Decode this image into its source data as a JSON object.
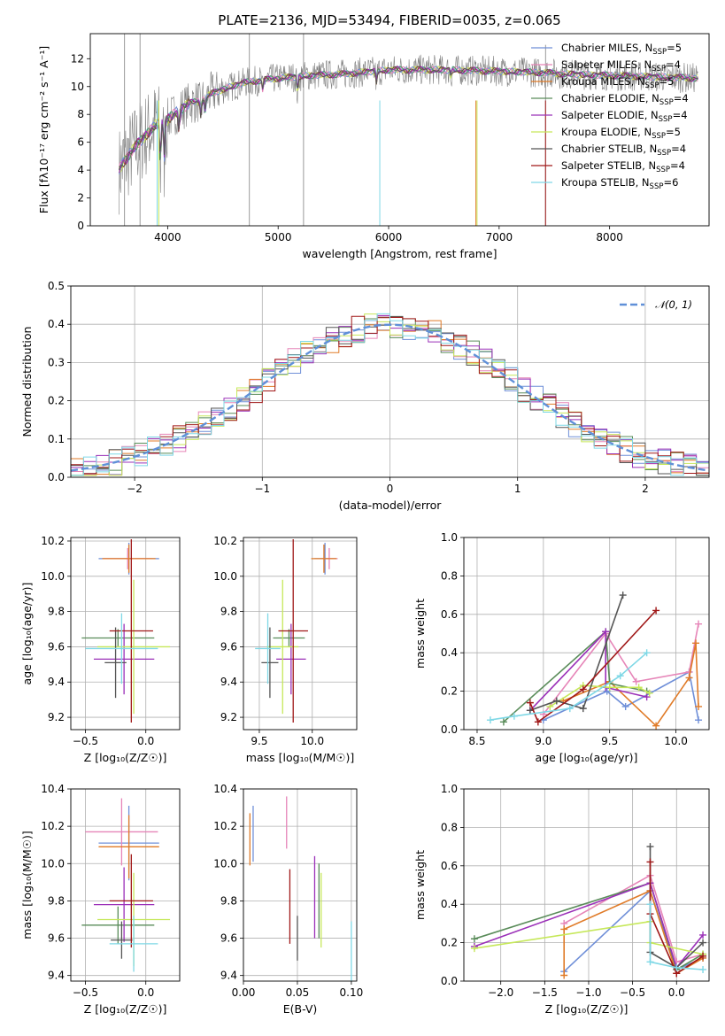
{
  "figure": {
    "title": "PLATE=2136, MJD=53494, FIBERID=0035, z=0.065"
  },
  "colors": {
    "chabrier_miles": "#6f8fd8",
    "salpeter_miles": "#e685b8",
    "kroupa_miles": "#e07b28",
    "chabrier_elodie": "#5a8c5a",
    "salpeter_elodie": "#9b30b8",
    "kroupa_elodie": "#c6e85a",
    "chabrier_stelib": "#555555",
    "salpeter_stelib": "#a01818",
    "kroupa_stelib": "#7fd8e6",
    "data": "#808080",
    "normal": "#6090d8"
  },
  "legend_spectrum": [
    {
      "text": "Chabrier MILES, N",
      "sub": "SSP",
      "tail": "=5",
      "color": "#6f8fd8"
    },
    {
      "text": "Salpeter MILES, N",
      "sub": "SSP",
      "tail": "=4",
      "color": "#e685b8"
    },
    {
      "text": "Kroupa MILES, N",
      "sub": "SSP",
      "tail": "=5",
      "color": "#e07b28"
    },
    {
      "text": "Chabrier ELODIE, N",
      "sub": "SSP",
      "tail": "=4",
      "color": "#5a8c5a"
    },
    {
      "text": "Salpeter ELODIE, N",
      "sub": "SSP",
      "tail": "=4",
      "color": "#9b30b8"
    },
    {
      "text": "Kroupa ELODIE, N",
      "sub": "SSP",
      "tail": "=5",
      "color": "#c6e85a"
    },
    {
      "text": "Chabrier STELIB, N",
      "sub": "SSP",
      "tail": "=4",
      "color": "#555555"
    },
    {
      "text": "Salpeter STELIB, N",
      "sub": "SSP",
      "tail": "=4",
      "color": "#a01818"
    },
    {
      "text": "Kroupa STELIB, N",
      "sub": "SSP",
      "tail": "=6",
      "color": "#7fd8e6"
    }
  ],
  "chart_data": [
    {
      "type": "line",
      "panel": "spectrum",
      "xlabel": "wavelength [Angstrom, rest frame]",
      "ylabel": "Flux [fλ10⁻¹⁷ erg cm⁻² s⁻¹ A⁻¹]",
      "xlim": [
        3300,
        8900
      ],
      "ylim": [
        0,
        13.8
      ],
      "xticks": [
        4000,
        5000,
        6000,
        7000,
        8000
      ],
      "yticks": [
        0,
        2,
        4,
        6,
        8,
        10,
        12
      ],
      "continuum": {
        "x": [
          3560,
          3600,
          3700,
          3800,
          3900,
          4000,
          4100,
          4200,
          4300,
          4400,
          4500,
          4700,
          5000,
          5300,
          5600,
          6000,
          6500,
          7000,
          7400,
          7600,
          8000,
          8400,
          8800
        ],
        "y": [
          4.0,
          4.6,
          5.6,
          6.5,
          7.3,
          7.6,
          8.3,
          8.8,
          9.0,
          9.5,
          9.8,
          10.3,
          10.6,
          10.8,
          10.9,
          11.2,
          11.2,
          11.1,
          11.0,
          10.9,
          10.8,
          10.7,
          10.6
        ]
      }
    },
    {
      "type": "line",
      "panel": "residual_histogram",
      "xlabel": "(data-model)/error",
      "ylabel": "Normed distribution",
      "xlim": [
        -2.5,
        2.5
      ],
      "ylim": [
        0,
        0.5
      ],
      "xticks": [
        -2,
        -1,
        0,
        1,
        2
      ],
      "yticks": [
        0.0,
        0.1,
        0.2,
        0.3,
        0.4,
        0.5
      ],
      "legend": "𝒩(0, 1)",
      "bin_width": 0.1
    },
    {
      "type": "scatter",
      "panel": "age_vs_Z",
      "xlabel": "Z [log₁₀(Z/Z☉)]",
      "ylabel": "age  [log₁₀(age/yr)]",
      "xlim": [
        -0.62,
        0.28
      ],
      "ylim": [
        9.13,
        10.22
      ],
      "xticks": [
        -0.5,
        0.0
      ],
      "yticks": [
        9.2,
        9.4,
        9.6,
        9.8,
        10.0,
        10.2
      ],
      "series": [
        {
          "name": "Chabrier MILES",
          "x": -0.14,
          "xerr": 0.25,
          "y": 10.1,
          "yerr": 0.09
        },
        {
          "name": "Salpeter MILES",
          "x": -0.15,
          "xerr": 0.2,
          "y": 10.1,
          "yerr": 0.06
        },
        {
          "name": "Kroupa MILES",
          "x": -0.14,
          "xerr": 0.22,
          "y": 10.1,
          "yerr": 0.08
        },
        {
          "name": "Chabrier ELODIE",
          "x": -0.23,
          "xerr": 0.3,
          "y": 9.65,
          "yerr": 0.05
        },
        {
          "name": "Salpeter ELODIE",
          "x": -0.18,
          "xerr": 0.25,
          "y": 9.53,
          "yerr": 0.2
        },
        {
          "name": "Kroupa ELODIE",
          "x": -0.1,
          "xerr": 0.3,
          "y": 9.6,
          "yerr": 0.38
        },
        {
          "name": "Chabrier STELIB",
          "x": -0.25,
          "xerr": 0.09,
          "y": 9.51,
          "yerr": 0.2
        },
        {
          "name": "Salpeter STELIB",
          "x": -0.12,
          "xerr": 0.18,
          "y": 9.69,
          "yerr": 0.52
        },
        {
          "name": "Kroupa STELIB",
          "x": -0.2,
          "xerr": 0.3,
          "y": 9.59,
          "yerr": 0.2
        }
      ]
    },
    {
      "type": "scatter",
      "panel": "age_vs_mass",
      "xlabel": "mass [log₁₀(M/M☉)]",
      "ylabel": "",
      "xlim": [
        9.35,
        10.42
      ],
      "ylim": [
        9.13,
        10.22
      ],
      "xticks": [
        9.5,
        10.0
      ],
      "yticks": [
        9.2,
        9.4,
        9.6,
        9.8,
        10.0,
        10.2
      ],
      "series": [
        {
          "name": "Chabrier MILES",
          "x": 10.12,
          "xerr": 0.1,
          "y": 10.1,
          "yerr": 0.09
        },
        {
          "name": "Salpeter MILES",
          "x": 10.16,
          "xerr": 0.08,
          "y": 10.1,
          "yerr": 0.06
        },
        {
          "name": "Kroupa MILES",
          "x": 10.11,
          "xerr": 0.12,
          "y": 10.1,
          "yerr": 0.08
        },
        {
          "name": "Chabrier ELODIE",
          "x": 9.78,
          "xerr": 0.15,
          "y": 9.65,
          "yerr": 0.05
        },
        {
          "name": "Salpeter ELODIE",
          "x": 9.8,
          "xerr": 0.14,
          "y": 9.53,
          "yerr": 0.2
        },
        {
          "name": "Kroupa ELODIE",
          "x": 9.72,
          "xerr": 0.15,
          "y": 9.6,
          "yerr": 0.38
        },
        {
          "name": "Chabrier STELIB",
          "x": 9.6,
          "xerr": 0.08,
          "y": 9.51,
          "yerr": 0.2
        },
        {
          "name": "Salpeter STELIB",
          "x": 9.82,
          "xerr": 0.14,
          "y": 9.69,
          "yerr": 0.52
        },
        {
          "name": "Kroupa STELIB",
          "x": 9.58,
          "xerr": 0.12,
          "y": 9.59,
          "yerr": 0.2
        }
      ]
    },
    {
      "type": "line",
      "panel": "weight_vs_age",
      "xlabel": "age  [log₁₀(age/yr)]",
      "ylabel": "mass weight",
      "xlim": [
        8.4,
        10.25
      ],
      "ylim": [
        0,
        1.0
      ],
      "xticks": [
        8.5,
        9.0,
        9.5,
        10.0
      ],
      "yticks": [
        0.0,
        0.2,
        0.4,
        0.6,
        0.8,
        1.0
      ],
      "series": [
        {
          "name": "Chabrier MILES",
          "x": [
            9.0,
            9.48,
            9.62,
            10.1,
            10.17
          ],
          "y": [
            0.05,
            0.2,
            0.12,
            0.3,
            0.05
          ]
        },
        {
          "name": "Salpeter MILES",
          "x": [
            9.0,
            9.47,
            9.7,
            10.1,
            10.17
          ],
          "y": [
            0.08,
            0.5,
            0.25,
            0.3,
            0.55
          ]
        },
        {
          "name": "Kroupa MILES",
          "x": [
            9.15,
            9.5,
            9.85,
            10.1,
            10.15,
            10.17
          ],
          "y": [
            0.15,
            0.25,
            0.02,
            0.27,
            0.45,
            0.12
          ]
        },
        {
          "name": "Chabrier ELODIE",
          "x": [
            8.7,
            9.47,
            9.5,
            9.78
          ],
          "y": [
            0.04,
            0.51,
            0.24,
            0.2
          ]
        },
        {
          "name": "Salpeter ELODIE",
          "x": [
            8.9,
            9.47,
            9.47,
            9.78
          ],
          "y": [
            0.1,
            0.51,
            0.22,
            0.17
          ]
        },
        {
          "name": "Kroupa ELODIE",
          "x": [
            9.05,
            9.3,
            9.5,
            9.72,
            9.8
          ],
          "y": [
            0.12,
            0.23,
            0.22,
            0.22,
            0.19
          ]
        },
        {
          "name": "Chabrier STELIB",
          "x": [
            8.9,
            9.1,
            9.3,
            9.6
          ],
          "y": [
            0.1,
            0.15,
            0.11,
            0.7
          ]
        },
        {
          "name": "Salpeter STELIB",
          "x": [
            8.9,
            8.96,
            9.3,
            9.85
          ],
          "y": [
            0.14,
            0.04,
            0.21,
            0.62
          ]
        },
        {
          "name": "Kroupa STELIB",
          "x": [
            8.6,
            8.78,
            9.2,
            9.58,
            9.78
          ],
          "y": [
            0.05,
            0.07,
            0.11,
            0.28,
            0.4
          ]
        }
      ]
    },
    {
      "type": "scatter",
      "panel": "mass_vs_Z",
      "xlabel": "Z [log₁₀(Z/Z☉)]",
      "ylabel": "mass [log₁₀(M/M☉)]",
      "xlim": [
        -0.62,
        0.28
      ],
      "ylim": [
        9.37,
        10.4
      ],
      "xticks": [
        -0.5,
        0.0
      ],
      "yticks": [
        9.4,
        9.6,
        9.8,
        10.0,
        10.2,
        10.4
      ],
      "series": [
        {
          "name": "Chabrier MILES",
          "x": -0.14,
          "xerr": 0.25,
          "y": 10.11,
          "yerr": 0.2
        },
        {
          "name": "Salpeter MILES",
          "x": -0.2,
          "xerr": 0.3,
          "y": 10.17,
          "yerr": 0.18
        },
        {
          "name": "Kroupa MILES",
          "x": -0.14,
          "xerr": 0.25,
          "y": 10.09,
          "yerr": 0.17
        },
        {
          "name": "Chabrier ELODIE",
          "x": -0.23,
          "xerr": 0.3,
          "y": 9.67,
          "yerr": 0.1
        },
        {
          "name": "Salpeter ELODIE",
          "x": -0.18,
          "xerr": 0.25,
          "y": 9.78,
          "yerr": 0.2
        },
        {
          "name": "Kroupa ELODIE",
          "x": -0.1,
          "xerr": 0.3,
          "y": 9.7,
          "yerr": 0.25
        },
        {
          "name": "Chabrier STELIB",
          "x": -0.2,
          "xerr": 0.09,
          "y": 9.59,
          "yerr": 0.1
        },
        {
          "name": "Salpeter STELIB",
          "x": -0.12,
          "xerr": 0.18,
          "y": 9.8,
          "yerr": 0.25
        },
        {
          "name": "Kroupa STELIB",
          "x": -0.1,
          "xerr": 0.2,
          "y": 9.57,
          "yerr": 0.15
        }
      ]
    },
    {
      "type": "scatter",
      "panel": "mass_vs_EBV",
      "xlabel": "E(B-V)",
      "ylabel": "",
      "xlim": [
        0.0,
        0.105
      ],
      "ylim": [
        9.37,
        10.4
      ],
      "xticks": [
        0.0,
        0.05,
        0.1
      ],
      "yticks": [
        9.4,
        9.6,
        9.8,
        10.0,
        10.2,
        10.4
      ],
      "series": [
        {
          "name": "Chabrier MILES",
          "x": 0.009,
          "y": 10.16,
          "yerr": 0.15
        },
        {
          "name": "Salpeter MILES",
          "x": 0.04,
          "y": 10.22,
          "yerr": 0.14
        },
        {
          "name": "Kroupa MILES",
          "x": 0.006,
          "y": 10.13,
          "yerr": 0.14
        },
        {
          "name": "Chabrier ELODIE",
          "x": 0.07,
          "y": 9.8,
          "yerr": 0.2
        },
        {
          "name": "Salpeter ELODIE",
          "x": 0.066,
          "y": 9.82,
          "yerr": 0.22
        },
        {
          "name": "Kroupa ELODIE",
          "x": 0.072,
          "y": 9.75,
          "yerr": 0.2
        },
        {
          "name": "Chabrier STELIB",
          "x": 0.05,
          "y": 9.6,
          "yerr": 0.12
        },
        {
          "name": "Salpeter STELIB",
          "x": 0.043,
          "y": 9.77,
          "yerr": 0.2
        },
        {
          "name": "Kroupa STELIB",
          "x": 0.1,
          "y": 9.52,
          "yerr": 0.17
        }
      ]
    },
    {
      "type": "line",
      "panel": "weight_vs_Z",
      "xlabel": "Z [log₁₀(Z/Z☉)]",
      "ylabel": "mass weight",
      "xlim": [
        -2.42,
        0.37
      ],
      "ylim": [
        0,
        1.0
      ],
      "xticks": [
        -2.0,
        -1.5,
        -1.0,
        -0.5,
        0.0
      ],
      "yticks": [
        0.0,
        0.2,
        0.4,
        0.6,
        0.8,
        1.0
      ],
      "series": [
        {
          "name": "Chabrier MILES",
          "x": [
            -1.28,
            -0.3,
            0.0,
            0.3
          ],
          "y": [
            0.05,
            0.47,
            0.06,
            0.12
          ]
        },
        {
          "name": "Salpeter MILES",
          "x": [
            -1.28,
            -0.3,
            0.0,
            0.3
          ],
          "y": [
            0.3,
            0.55,
            0.1,
            0.14
          ]
        },
        {
          "name": "Kroupa MILES",
          "x": [
            -1.28,
            -1.28,
            -0.3,
            0.0,
            0.3
          ],
          "y": [
            0.03,
            0.27,
            0.47,
            0.04,
            0.12
          ]
        },
        {
          "name": "Chabrier ELODIE",
          "x": [
            -2.3,
            -0.3,
            0.0,
            0.3
          ],
          "y": [
            0.22,
            0.51,
            0.06,
            0.14
          ]
        },
        {
          "name": "Salpeter ELODIE",
          "x": [
            -2.3,
            -0.3,
            0.0,
            0.3
          ],
          "y": [
            0.18,
            0.51,
            0.07,
            0.24
          ]
        },
        {
          "name": "Kroupa ELODIE",
          "x": [
            -2.3,
            -0.3,
            -0.3,
            0.3
          ],
          "y": [
            0.17,
            0.31,
            0.2,
            0.14
          ]
        },
        {
          "name": "Chabrier STELIB",
          "x": [
            -0.3,
            -0.3,
            0.0,
            0.3
          ],
          "y": [
            0.7,
            0.15,
            0.07,
            0.2
          ]
        },
        {
          "name": "Salpeter STELIB",
          "x": [
            -0.3,
            -0.3,
            0.0,
            0.3
          ],
          "y": [
            0.62,
            0.35,
            0.04,
            0.13
          ]
        },
        {
          "name": "Kroupa STELIB",
          "x": [
            -0.3,
            -0.3,
            0.0,
            0.3
          ],
          "y": [
            0.4,
            0.1,
            0.07,
            0.06
          ]
        }
      ]
    }
  ]
}
